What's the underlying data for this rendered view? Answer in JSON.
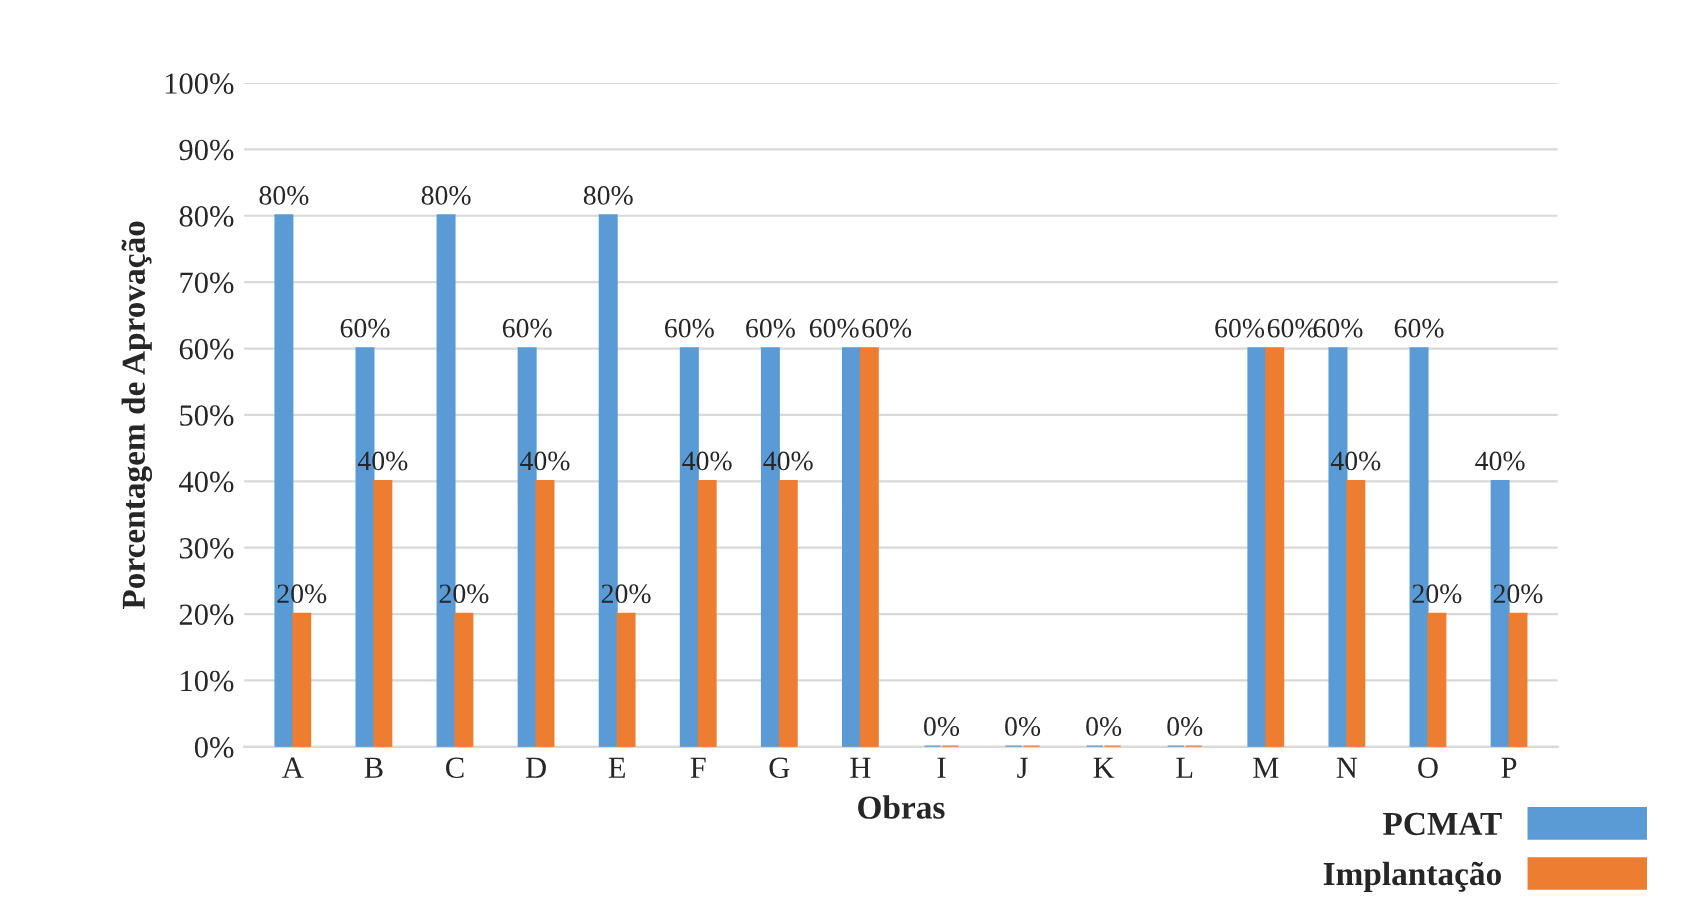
{
  "chart_data": {
    "type": "bar",
    "xlabel": "Obras",
    "ylabel": "Porcentagem de Aprovação",
    "categories": [
      "A",
      "B",
      "C",
      "D",
      "E",
      "F",
      "G",
      "H",
      "I",
      "J",
      "K",
      "L",
      "M",
      "N",
      "O",
      "P"
    ],
    "series": [
      {
        "name": "PCMAT",
        "color": "#5b9bd5",
        "values": [
          80,
          60,
          80,
          60,
          80,
          60,
          60,
          60,
          0,
          0,
          0,
          0,
          60,
          60,
          60,
          40
        ],
        "value_labels": [
          "80%",
          "60%",
          "80%",
          "60%",
          "80%",
          "60%",
          "60%",
          "60%",
          "0%",
          "0%",
          "0%",
          "0%",
          "60%",
          "60%",
          "60%",
          "40%"
        ]
      },
      {
        "name": "Implantação",
        "color": "#ed7d31",
        "values": [
          20,
          40,
          20,
          40,
          20,
          40,
          40,
          60,
          0,
          0,
          0,
          0,
          60,
          40,
          20,
          20
        ],
        "value_labels": [
          "20%",
          "40%",
          "20%",
          "40%",
          "20%",
          "40%",
          "40%",
          "60%",
          null,
          null,
          null,
          null,
          "60%",
          "40%",
          "20%",
          "20%"
        ]
      }
    ],
    "ylim": [
      0,
      100
    ],
    "yticks": [
      {
        "value": 0,
        "label": "0%"
      },
      {
        "value": 10,
        "label": "10%"
      },
      {
        "value": 20,
        "label": "20%"
      },
      {
        "value": 30,
        "label": "30%"
      },
      {
        "value": 40,
        "label": "40%"
      },
      {
        "value": 50,
        "label": "50%"
      },
      {
        "value": 60,
        "label": "60%"
      },
      {
        "value": 70,
        "label": "70%"
      },
      {
        "value": 80,
        "label": "80%"
      },
      {
        "value": 90,
        "label": "90%"
      },
      {
        "value": 100,
        "label": "100%"
      }
    ],
    "grid": "y",
    "legend": "bottom right"
  }
}
